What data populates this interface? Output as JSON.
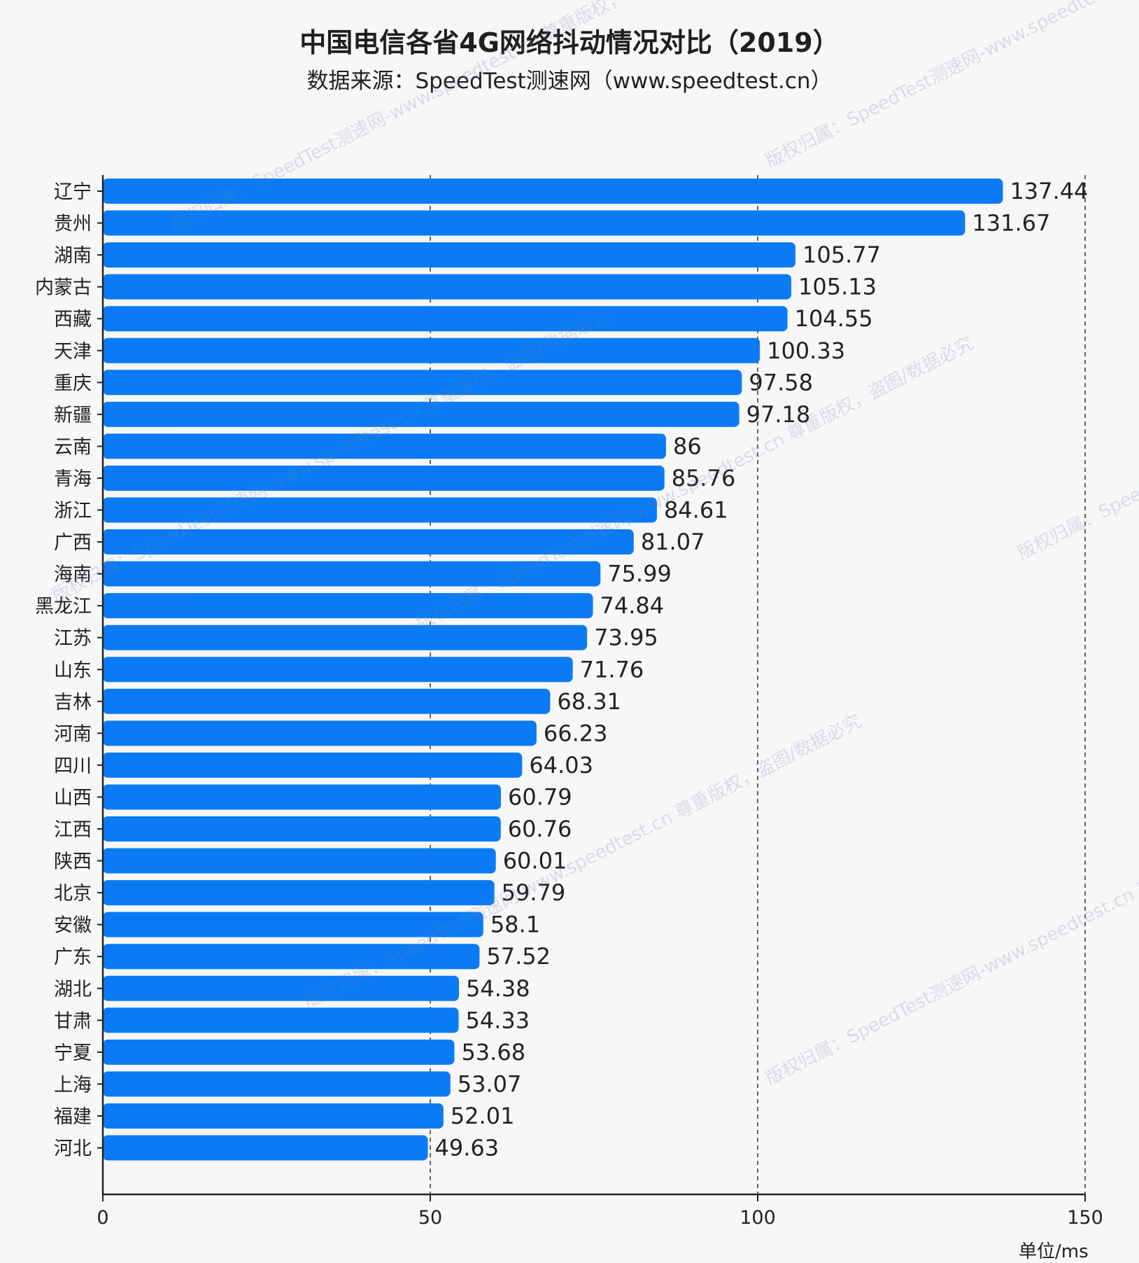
{
  "title": "中国电信各省4G网络抖动情况对比（2019）",
  "subtitle": "数据来源：SpeedTest测速网（www.speedtest.cn）",
  "unit_label": "单位/ms",
  "watermark_text": "版权归属：SpeedTest测速网-www.speedtest.cn 尊重版权，盗图/数据必究",
  "colors": {
    "bar": "#0a7bf5",
    "background": "#f7f7f7",
    "text": "#222222"
  },
  "chart_data": {
    "type": "bar",
    "orientation": "horizontal",
    "categories": [
      "辽宁",
      "贵州",
      "湖南",
      "内蒙古",
      "西藏",
      "天津",
      "重庆",
      "新疆",
      "云南",
      "青海",
      "浙江",
      "广西",
      "海南",
      "黑龙江",
      "江苏",
      "山东",
      "吉林",
      "河南",
      "四川",
      "山西",
      "江西",
      "陕西",
      "北京",
      "安徽",
      "广东",
      "湖北",
      "甘肃",
      "宁夏",
      "上海",
      "福建",
      "河北"
    ],
    "values": [
      137.44,
      131.67,
      105.77,
      105.13,
      104.55,
      100.33,
      97.58,
      97.18,
      86,
      85.76,
      84.61,
      81.07,
      75.99,
      74.84,
      73.95,
      71.76,
      68.31,
      66.23,
      64.03,
      60.79,
      60.76,
      60.01,
      59.79,
      58.1,
      57.52,
      54.38,
      54.33,
      53.68,
      53.07,
      52.01,
      49.63
    ],
    "value_labels": [
      "137.44",
      "131.67",
      "105.77",
      "105.13",
      "104.55",
      "100.33",
      "97.58",
      "97.18",
      "86",
      "85.76",
      "84.61",
      "81.07",
      "75.99",
      "74.84",
      "73.95",
      "71.76",
      "68.31",
      "66.23",
      "64.03",
      "60.79",
      "60.76",
      "60.01",
      "59.79",
      "58.1",
      "57.52",
      "54.38",
      "54.33",
      "53.68",
      "53.07",
      "52.01",
      "49.63"
    ],
    "xlim": [
      0,
      150
    ],
    "xticks": [
      0,
      50,
      100,
      150
    ],
    "xtick_labels": [
      "0",
      "50",
      "100",
      "150"
    ],
    "grid": "vertical dashed",
    "title": "中国电信各省4G网络抖动情况对比（2019）",
    "subtitle": "数据来源：SpeedTest测速网（www.speedtest.cn）",
    "unit": "单位/ms"
  }
}
